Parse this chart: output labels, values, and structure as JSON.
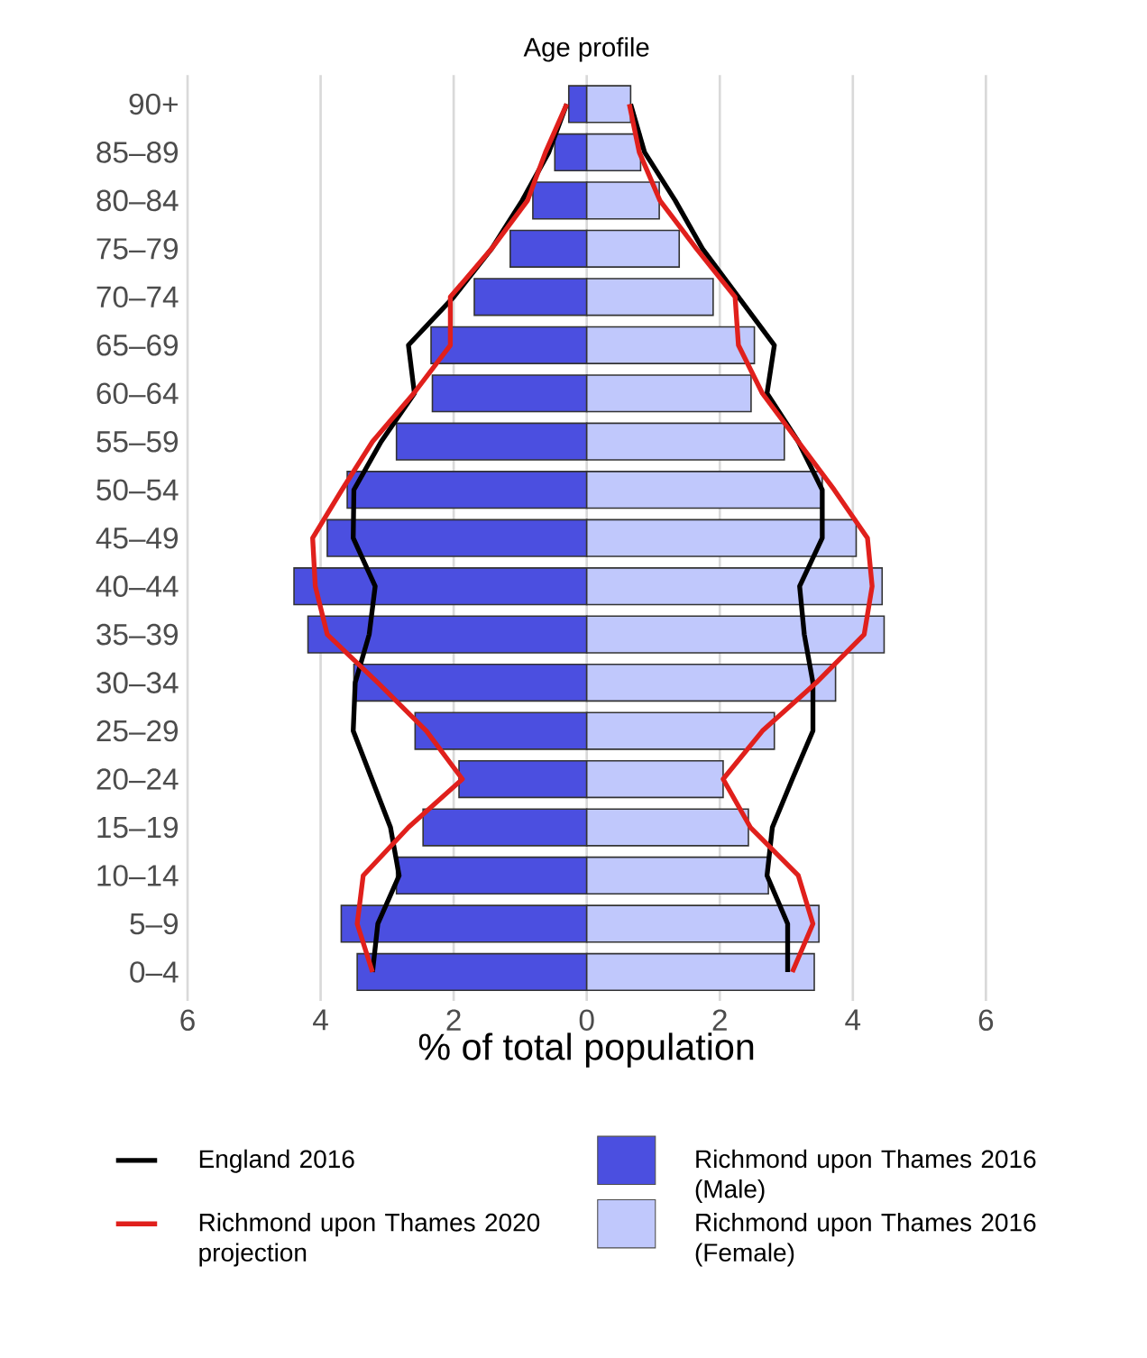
{
  "chart_data": {
    "type": "bar",
    "orientation": "horizontal",
    "title": "Age profile",
    "xlabel": "% of total population",
    "categories": [
      "90+",
      "85–89",
      "80–84",
      "75–79",
      "70–74",
      "65–69",
      "60–64",
      "55–59",
      "50–54",
      "45–49",
      "40–44",
      "35–39",
      "30–34",
      "25–29",
      "20–24",
      "15–19",
      "10–14",
      "5–9",
      "0–4"
    ],
    "series": [
      {
        "name": "England 2016",
        "type": "line",
        "color": "#000000",
        "values": [
          -0.3,
          -0.57,
          -0.97,
          -1.43,
          -2.0,
          -2.68,
          -2.59,
          -3.09,
          -3.5,
          -3.51,
          -3.18,
          -3.27,
          -3.48,
          -3.51,
          -3.23,
          -2.95,
          -2.82,
          -3.14,
          -3.22
        ]
      },
      {
        "name": "Richmond upon Thames 2016 (Male)",
        "color": "#4b4fe0",
        "values": [
          -0.27,
          -0.48,
          -0.81,
          -1.15,
          -1.69,
          -2.34,
          -2.32,
          -2.86,
          -3.6,
          -3.9,
          -4.4,
          -4.19,
          -3.5,
          -2.58,
          -1.92,
          -2.46,
          -2.86,
          -3.69,
          -3.45
        ]
      },
      {
        "name": "Richmond upon Thames 2020 projection",
        "type": "line",
        "color": "#e0201c",
        "values": [
          -0.3,
          -0.62,
          -0.89,
          -1.43,
          -2.05,
          -2.05,
          -2.6,
          -3.22,
          -3.68,
          -4.12,
          -4.08,
          -3.9,
          -3.14,
          -2.41,
          -1.87,
          -2.68,
          -3.36,
          -3.45,
          -3.22
        ]
      },
      {
        "name": "Richmond upon Thames 2016 (Female)",
        "color": "#c0c8fc",
        "values": [
          0.66,
          0.81,
          1.09,
          1.39,
          1.9,
          2.52,
          2.47,
          2.97,
          3.54,
          4.05,
          4.44,
          4.47,
          3.74,
          2.82,
          2.05,
          2.43,
          2.73,
          3.49,
          3.42
        ]
      },
      {
        "type": "line",
        "color": "#000000",
        "values": [
          0.66,
          0.87,
          1.33,
          1.74,
          2.28,
          2.82,
          2.71,
          3.18,
          3.54,
          3.54,
          3.2,
          3.27,
          3.4,
          3.4,
          3.09,
          2.79,
          2.71,
          3.02,
          3.02
        ]
      },
      {
        "type": "line",
        "color": "#e0201c",
        "values": [
          0.64,
          0.79,
          1.1,
          1.65,
          2.23,
          2.28,
          2.64,
          3.18,
          3.72,
          4.22,
          4.29,
          4.17,
          3.45,
          2.64,
          2.05,
          2.46,
          3.18,
          3.4,
          3.09
        ]
      }
    ],
    "xlim": [
      -6,
      6
    ],
    "xticks": [
      {
        "value": -6,
        "label": "6"
      },
      {
        "value": -4,
        "label": "4"
      },
      {
        "value": -2,
        "label": "2"
      },
      0,
      2,
      4,
      6
    ],
    "stacked": true,
    "grid": "x",
    "legend": "bottom"
  }
}
